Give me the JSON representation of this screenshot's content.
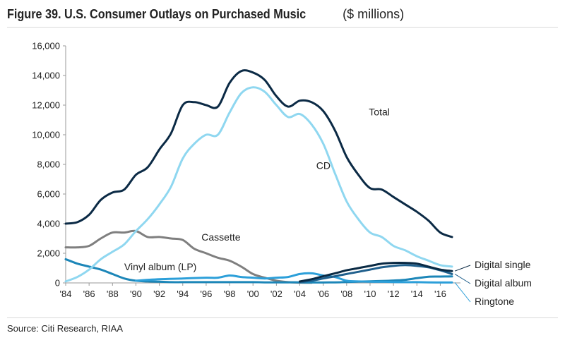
{
  "title": "Figure 39. U.S. Consumer Outlays on Purchased Music",
  "title_unit": "($ millions)",
  "source": "Source: Citi Research, RIAA",
  "chart_data": {
    "type": "line",
    "title": "Figure 39. U.S. Consumer Outlays on Purchased Music ($ millions)",
    "xlabel": "",
    "ylabel": "",
    "xlim": [
      1984,
      2017
    ],
    "ylim": [
      0,
      16000
    ],
    "x_ticks": [
      1984,
      1986,
      1988,
      1990,
      1992,
      1994,
      1996,
      1998,
      2000,
      2002,
      2004,
      2006,
      2008,
      2010,
      2012,
      2014,
      2016
    ],
    "x_tick_labels": [
      "'84",
      "'86",
      "'88",
      "'90",
      "'92",
      "'94",
      "'96",
      "'98",
      "'00",
      "'02",
      "'04",
      "'06",
      "'08",
      "'10",
      "'12",
      "'14",
      "'16"
    ],
    "y_ticks": [
      0,
      2000,
      4000,
      6000,
      8000,
      10000,
      12000,
      14000,
      16000
    ],
    "y_tick_labels": [
      "0",
      "2,000",
      "4,000",
      "6,000",
      "8,000",
      "10,000",
      "12,000",
      "14,000",
      "16,000"
    ],
    "grid": false,
    "series": [
      {
        "name": "Total",
        "color": "#0b2a45",
        "label_position": "inline",
        "points": [
          [
            1984,
            4000
          ],
          [
            1985,
            4100
          ],
          [
            1986,
            4600
          ],
          [
            1987,
            5600
          ],
          [
            1988,
            6100
          ],
          [
            1989,
            6300
          ],
          [
            1990,
            7300
          ],
          [
            1991,
            7800
          ],
          [
            1992,
            9000
          ],
          [
            1993,
            10100
          ],
          [
            1994,
            12000
          ],
          [
            1995,
            12200
          ],
          [
            1996,
            12000
          ],
          [
            1997,
            11900
          ],
          [
            1998,
            13500
          ],
          [
            1999,
            14300
          ],
          [
            2000,
            14200
          ],
          [
            2001,
            13700
          ],
          [
            2002,
            12600
          ],
          [
            2003,
            11900
          ],
          [
            2004,
            12300
          ],
          [
            2005,
            12200
          ],
          [
            2006,
            11600
          ],
          [
            2007,
            10300
          ],
          [
            2008,
            8500
          ],
          [
            2009,
            7300
          ],
          [
            2010,
            6400
          ],
          [
            2011,
            6300
          ],
          [
            2012,
            5800
          ],
          [
            2013,
            5300
          ],
          [
            2014,
            4800
          ],
          [
            2015,
            4200
          ],
          [
            2016,
            3400
          ],
          [
            2017,
            3100
          ]
        ]
      },
      {
        "name": "CD",
        "color": "#8fd7f0",
        "label_position": "inline",
        "points": [
          [
            1984,
            100
          ],
          [
            1985,
            400
          ],
          [
            1986,
            900
          ],
          [
            1987,
            1600
          ],
          [
            1988,
            2100
          ],
          [
            1989,
            2600
          ],
          [
            1990,
            3500
          ],
          [
            1991,
            4300
          ],
          [
            1992,
            5300
          ],
          [
            1993,
            6500
          ],
          [
            1994,
            8400
          ],
          [
            1995,
            9400
          ],
          [
            1996,
            10000
          ],
          [
            1997,
            10000
          ],
          [
            1998,
            11500
          ],
          [
            1999,
            12800
          ],
          [
            2000,
            13200
          ],
          [
            2001,
            12900
          ],
          [
            2002,
            12000
          ],
          [
            2003,
            11200
          ],
          [
            2004,
            11400
          ],
          [
            2005,
            10700
          ],
          [
            2006,
            9400
          ],
          [
            2007,
            7400
          ],
          [
            2008,
            5500
          ],
          [
            2009,
            4300
          ],
          [
            2010,
            3400
          ],
          [
            2011,
            3100
          ],
          [
            2012,
            2500
          ],
          [
            2013,
            2200
          ],
          [
            2014,
            1800
          ],
          [
            2015,
            1500
          ],
          [
            2016,
            1200
          ],
          [
            2017,
            1100
          ]
        ]
      },
      {
        "name": "Cassette",
        "color": "#7f7f7f",
        "label_position": "inline",
        "points": [
          [
            1984,
            2400
          ],
          [
            1985,
            2400
          ],
          [
            1986,
            2500
          ],
          [
            1987,
            3000
          ],
          [
            1988,
            3400
          ],
          [
            1989,
            3400
          ],
          [
            1990,
            3500
          ],
          [
            1991,
            3100
          ],
          [
            1992,
            3100
          ],
          [
            1993,
            3000
          ],
          [
            1994,
            2900
          ],
          [
            1995,
            2300
          ],
          [
            1996,
            2000
          ],
          [
            1997,
            1700
          ],
          [
            1998,
            1500
          ],
          [
            1999,
            1100
          ],
          [
            2000,
            600
          ],
          [
            2001,
            350
          ],
          [
            2002,
            150
          ],
          [
            2003,
            50
          ],
          [
            2004,
            20
          ],
          [
            2005,
            10
          ]
        ]
      },
      {
        "name": "Vinyl album (LP)",
        "color": "#1c86b8",
        "label_position": "inline",
        "points": [
          [
            1984,
            1600
          ],
          [
            1985,
            1300
          ],
          [
            1986,
            1100
          ],
          [
            1987,
            900
          ],
          [
            1988,
            600
          ],
          [
            1989,
            300
          ],
          [
            1990,
            150
          ],
          [
            1991,
            100
          ],
          [
            1992,
            80
          ],
          [
            1993,
            50
          ],
          [
            1994,
            50
          ],
          [
            1995,
            50
          ],
          [
            1996,
            50
          ],
          [
            1997,
            50
          ],
          [
            1998,
            50
          ],
          [
            1999,
            50
          ],
          [
            2000,
            50
          ],
          [
            2001,
            40
          ],
          [
            2002,
            40
          ],
          [
            2003,
            40
          ],
          [
            2004,
            40
          ],
          [
            2005,
            30
          ],
          [
            2006,
            30
          ],
          [
            2007,
            40
          ],
          [
            2008,
            60
          ],
          [
            2009,
            90
          ],
          [
            2010,
            110
          ],
          [
            2011,
            130
          ],
          [
            2012,
            160
          ],
          [
            2013,
            210
          ],
          [
            2014,
            320
          ],
          [
            2015,
            420
          ],
          [
            2016,
            430
          ],
          [
            2017,
            440
          ]
        ]
      },
      {
        "name": "Digital single",
        "color": "#0a2a44",
        "label_position": "legend-right",
        "points": [
          [
            2004,
            100
          ],
          [
            2005,
            250
          ],
          [
            2006,
            450
          ],
          [
            2007,
            650
          ],
          [
            2008,
            850
          ],
          [
            2009,
            1000
          ],
          [
            2010,
            1150
          ],
          [
            2011,
            1300
          ],
          [
            2012,
            1350
          ],
          [
            2013,
            1350
          ],
          [
            2014,
            1300
          ],
          [
            2015,
            1100
          ],
          [
            2016,
            900
          ],
          [
            2017,
            800
          ]
        ]
      },
      {
        "name": "Digital album",
        "color": "#1f5f8c",
        "label_position": "legend-right",
        "points": [
          [
            2004,
            50
          ],
          [
            2005,
            150
          ],
          [
            2006,
            300
          ],
          [
            2007,
            450
          ],
          [
            2008,
            600
          ],
          [
            2009,
            750
          ],
          [
            2010,
            900
          ],
          [
            2011,
            1050
          ],
          [
            2012,
            1150
          ],
          [
            2013,
            1200
          ],
          [
            2014,
            1150
          ],
          [
            2015,
            1050
          ],
          [
            2016,
            850
          ],
          [
            2017,
            600
          ]
        ]
      },
      {
        "name": "Ringtone",
        "color": "#2c9fd9",
        "label_position": "legend-right",
        "points": [
          [
            1990,
            150
          ],
          [
            1992,
            250
          ],
          [
            1994,
            300
          ],
          [
            1996,
            350
          ],
          [
            1997,
            350
          ],
          [
            1998,
            500
          ],
          [
            1999,
            400
          ],
          [
            2000,
            350
          ],
          [
            2001,
            300
          ],
          [
            2002,
            350
          ],
          [
            2003,
            400
          ],
          [
            2004,
            600
          ],
          [
            2005,
            650
          ],
          [
            2006,
            500
          ],
          [
            2007,
            400
          ],
          [
            2008,
            150
          ],
          [
            2009,
            100
          ],
          [
            2010,
            80
          ],
          [
            2011,
            80
          ],
          [
            2012,
            60
          ],
          [
            2013,
            50
          ],
          [
            2014,
            50
          ],
          [
            2015,
            40
          ],
          [
            2016,
            30
          ],
          [
            2017,
            30
          ]
        ]
      }
    ]
  }
}
